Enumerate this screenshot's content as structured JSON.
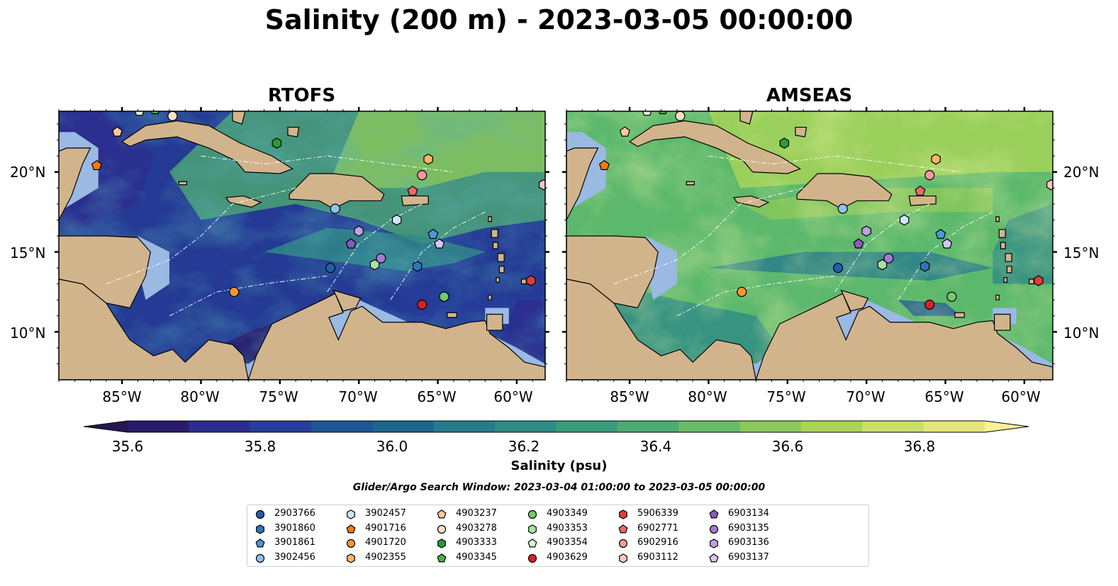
{
  "title": "Salinity (200 m) - 2023-03-05 00:00:00",
  "panels": [
    {
      "title": "RTOFS"
    },
    {
      "title": "AMSEAS"
    }
  ],
  "lat_labels": [
    "20°N",
    "15°N",
    "10°N"
  ],
  "lon_labels": [
    "85°W",
    "80°W",
    "75°W",
    "70°W",
    "65°W",
    "60°W"
  ],
  "colorbar": {
    "label": "Salinity (psu)",
    "ticks": [
      "35.6",
      "35.8",
      "36.0",
      "36.2",
      "36.4",
      "36.6",
      "36.8"
    ],
    "min": 35.5,
    "max": 36.9,
    "step": 0.1,
    "colors": [
      "#2a1b6b",
      "#2c2d8f",
      "#253f9a",
      "#1e5596",
      "#1d668f",
      "#277a8c",
      "#2f8b86",
      "#3a9c7c",
      "#4daa72",
      "#68bb66",
      "#8bc85b",
      "#aad458",
      "#c9df6a",
      "#e3e57c"
    ],
    "under_color": "#25174f",
    "over_color": "#fbf09a"
  },
  "search_window": "Glider/Argo Search Window: 2023-03-04 01:00:00 to 2023-03-05 00:00:00",
  "map_colors": {
    "land": "#d2b48c",
    "shallow": "#9ab9e3",
    "rtofs_base": "#243a94",
    "amseas_base": "#5cb86c"
  },
  "legend": [
    {
      "id": "2903766",
      "marker": "circle",
      "color": "#1f5fa8"
    },
    {
      "id": "3901860",
      "marker": "hexagon",
      "color": "#2f74b8"
    },
    {
      "id": "3901861",
      "marker": "pentagon",
      "color": "#4a98d8"
    },
    {
      "id": "3902456",
      "marker": "circle",
      "color": "#8ec3ee"
    },
    {
      "id": "3902457",
      "marker": "hexagon",
      "color": "#cfe6fa"
    },
    {
      "id": "4901716",
      "marker": "pentagon",
      "color": "#ef7a12"
    },
    {
      "id": "4901720",
      "marker": "circle",
      "color": "#f6962c"
    },
    {
      "id": "4902355",
      "marker": "hexagon",
      "color": "#f9b469"
    },
    {
      "id": "4903237",
      "marker": "pentagon",
      "color": "#fbc99a"
    },
    {
      "id": "4903278",
      "marker": "circle",
      "color": "#fde0c4"
    },
    {
      "id": "4903333",
      "marker": "hexagon",
      "color": "#2c9a36"
    },
    {
      "id": "4903345",
      "marker": "pentagon",
      "color": "#49b342"
    },
    {
      "id": "4903349",
      "marker": "circle",
      "color": "#74c96c"
    },
    {
      "id": "4903353",
      "marker": "hexagon",
      "color": "#a8e3a0"
    },
    {
      "id": "4903354",
      "marker": "pentagon",
      "color": "#d9f7d2"
    },
    {
      "id": "4903629",
      "marker": "circle",
      "color": "#d42424"
    },
    {
      "id": "5906339",
      "marker": "hexagon",
      "color": "#df3c3c"
    },
    {
      "id": "6902771",
      "marker": "pentagon",
      "color": "#ec6a6a"
    },
    {
      "id": "6902916",
      "marker": "circle",
      "color": "#f39a9a"
    },
    {
      "id": "6903112",
      "marker": "hexagon",
      "color": "#f8c6c3"
    },
    {
      "id": "6903134",
      "marker": "pentagon",
      "color": "#8a5bbf"
    },
    {
      "id": "6903135",
      "marker": "circle",
      "color": "#a57ad2"
    },
    {
      "id": "6903136",
      "marker": "hexagon",
      "color": "#c0a0e6"
    },
    {
      "id": "6903137",
      "marker": "pentagon",
      "color": "#dac4f5"
    }
  ],
  "floats": [
    {
      "id": "2903766",
      "lon": -71.8,
      "lat": 14.0
    },
    {
      "id": "3901860",
      "lon": -66.3,
      "lat": 14.1
    },
    {
      "id": "3901861",
      "lon": -65.3,
      "lat": 16.1
    },
    {
      "id": "3902456",
      "lon": -71.5,
      "lat": 17.7
    },
    {
      "id": "3902457",
      "lon": -67.6,
      "lat": 17.0
    },
    {
      "id": "4901716",
      "lon": -86.6,
      "lat": 20.4
    },
    {
      "id": "4901720",
      "lon": -77.9,
      "lat": 12.5
    },
    {
      "id": "4902355",
      "lon": -65.6,
      "lat": 20.8
    },
    {
      "id": "4903237",
      "lon": -85.3,
      "lat": 22.5
    },
    {
      "id": "4903278",
      "lon": -81.8,
      "lat": 23.5
    },
    {
      "id": "4903333",
      "lon": -75.2,
      "lat": 21.8
    },
    {
      "id": "4903345",
      "lon": -82.9,
      "lat": 23.9
    },
    {
      "id": "4903349",
      "lon": -64.6,
      "lat": 12.2
    },
    {
      "id": "4903353",
      "lon": -69.0,
      "lat": 14.2
    },
    {
      "id": "4903354",
      "lon": -83.9,
      "lat": 23.8
    },
    {
      "id": "4903629",
      "lon": -66.0,
      "lat": 11.7
    },
    {
      "id": "5906339",
      "lon": -59.1,
      "lat": 13.2
    },
    {
      "id": "6902771",
      "lon": -66.6,
      "lat": 18.8
    },
    {
      "id": "6902916",
      "lon": -66.0,
      "lat": 19.8
    },
    {
      "id": "6903112",
      "lon": -58.3,
      "lat": 19.2
    },
    {
      "id": "6903134",
      "lon": -70.5,
      "lat": 15.5
    },
    {
      "id": "6903135",
      "lon": -68.6,
      "lat": 14.6
    },
    {
      "id": "6903136",
      "lon": -70.0,
      "lat": 16.3
    },
    {
      "id": "6903137",
      "lon": -64.9,
      "lat": 15.5
    }
  ]
}
